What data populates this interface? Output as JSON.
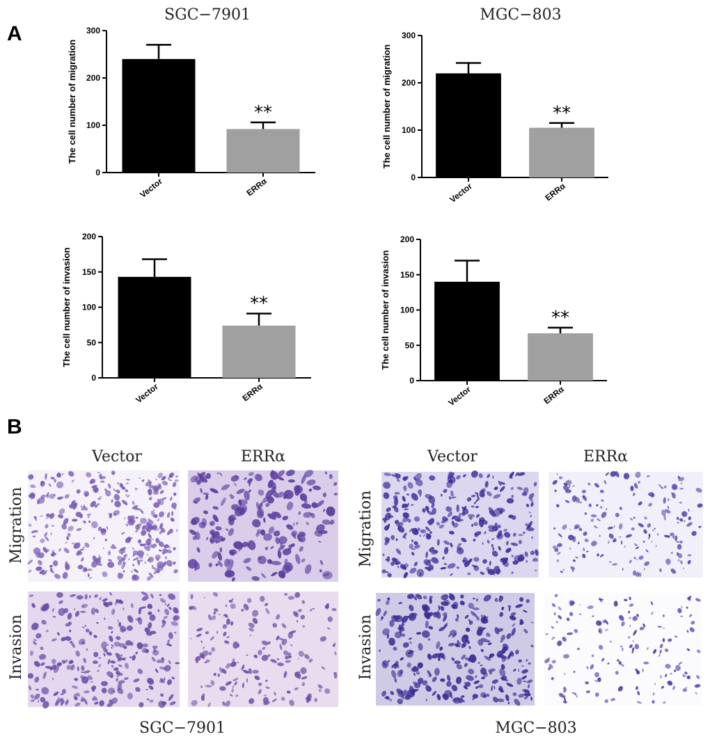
{
  "panel_a_label": "A",
  "panel_b_label": "B",
  "colors": {
    "vector_bar": "#000000",
    "erra_bar": "#a0a0a0",
    "axis": "#000000",
    "stain_dark": "#5b3fa6",
    "stain_light": "#e7e1f2"
  },
  "chart_data": [
    {
      "type": "bar",
      "title": "SGC−7901",
      "ylabel": "The cell number of migration",
      "categories": [
        "Vector",
        "ERRα"
      ],
      "values": [
        240,
        92
      ],
      "errors": [
        30,
        14
      ],
      "ylim": [
        0,
        300
      ],
      "yticks": [
        0,
        100,
        200,
        300
      ],
      "significance": [
        "",
        "**"
      ]
    },
    {
      "type": "bar",
      "title": "MGC−803",
      "ylabel": "The cell number of migration",
      "categories": [
        "Vector",
        "ERRα"
      ],
      "values": [
        220,
        105
      ],
      "errors": [
        22,
        10
      ],
      "ylim": [
        0,
        300
      ],
      "yticks": [
        0,
        100,
        200,
        300
      ],
      "significance": [
        "",
        "**"
      ]
    },
    {
      "type": "bar",
      "title": "",
      "ylabel": "The cell number of invasion",
      "categories": [
        "Vector",
        "ERRα"
      ],
      "values": [
        143,
        74
      ],
      "errors": [
        25,
        17
      ],
      "ylim": [
        0,
        200
      ],
      "yticks": [
        0,
        50,
        100,
        150,
        200
      ],
      "significance": [
        "",
        "**"
      ]
    },
    {
      "type": "bar",
      "title": "",
      "ylabel": "The cell number of invasion",
      "categories": [
        "Vector",
        "ERRα"
      ],
      "values": [
        140,
        67
      ],
      "errors": [
        30,
        8
      ],
      "ylim": [
        0,
        200
      ],
      "yticks": [
        0,
        50,
        100,
        150,
        200
      ],
      "significance": [
        "",
        "**"
      ]
    }
  ],
  "micrographs": {
    "groups": [
      {
        "title": "SGC−7901",
        "columns": [
          "Vector",
          "ERRα"
        ],
        "rows": [
          "Migration",
          "Invasion"
        ]
      },
      {
        "title": "MGC−803",
        "columns": [
          "Vector",
          "ERRα"
        ],
        "rows": [
          "Migration",
          "Invasion"
        ]
      }
    ]
  }
}
